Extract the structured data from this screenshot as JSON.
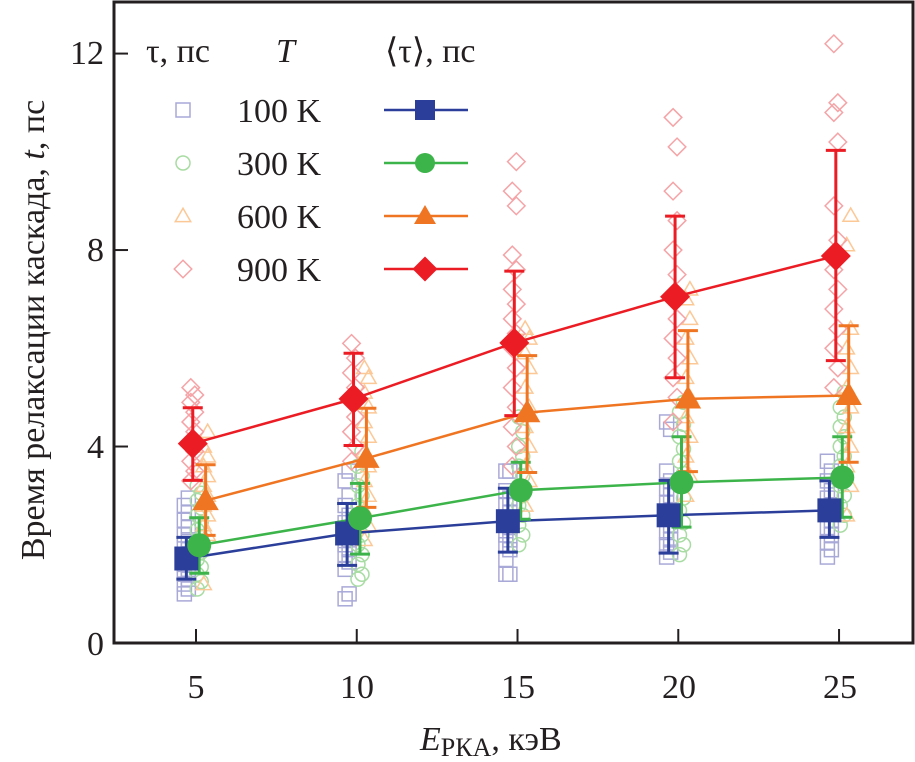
{
  "chart_data": {
    "type": "scatter",
    "title": "",
    "xlabel": "E",
    "xlabel_sub": "РКА",
    "xlabel_unit": ", кэВ",
    "ylabel": "Время релаксации каскада, ",
    "ylabel_var": "t",
    "ylabel_unit": ", пс",
    "xlim": [
      2.45,
      27.3
    ],
    "ylim": [
      0,
      13.05
    ],
    "xticks": [
      5,
      10,
      15,
      20,
      25
    ],
    "xtick_labels": [
      "5",
      "10",
      "15",
      "20",
      "25"
    ],
    "yticks": [
      0,
      4,
      8,
      12
    ],
    "ytick_labels": [
      "0",
      "4",
      "8",
      "12"
    ],
    "grid": false,
    "legend": {
      "placement": "top-left",
      "headers": {
        "individual": "τ, пс",
        "temperature": "T",
        "mean": "⟨τ⟩, пс"
      },
      "entries": [
        "100 K",
        "300 K",
        "600 K",
        "900 K"
      ]
    },
    "x": [
      5,
      10,
      15,
      20,
      25
    ],
    "series": [
      {
        "name": "100 K",
        "marker": "square",
        "color": "#2b3f9a",
        "light_color": "#a9a9d8",
        "x_offset": -0.3,
        "mean": [
          1.72,
          2.23,
          2.48,
          2.6,
          2.7
        ],
        "err_low": [
          1.3,
          1.58,
          1.85,
          1.83,
          2.15
        ],
        "err_high": [
          2.15,
          2.84,
          3.15,
          3.31,
          3.3
        ],
        "individual": [
          [
            1.0,
            1.1,
            1.2,
            1.3,
            1.4,
            1.5,
            1.6,
            1.7,
            1.8,
            1.9,
            2.0,
            2.1,
            2.2,
            2.35,
            2.5,
            2.65,
            2.8,
            2.95
          ],
          [
            0.9,
            1.0,
            1.5,
            1.65,
            1.8,
            1.9,
            2.0,
            2.1,
            2.2,
            2.3,
            2.45,
            2.6,
            2.8,
            3.0,
            3.3,
            3.5
          ],
          [
            1.4,
            1.4,
            1.7,
            1.9,
            2.0,
            2.1,
            2.2,
            2.35,
            2.5,
            2.65,
            2.8,
            2.95,
            3.1,
            3.5,
            3.5
          ],
          [
            1.75,
            1.85,
            2.0,
            2.1,
            2.25,
            2.4,
            2.55,
            2.7,
            2.85,
            3.0,
            3.15,
            3.3,
            3.5,
            4.35,
            4.5
          ],
          [
            1.75,
            1.9,
            2.05,
            2.2,
            2.35,
            2.5,
            2.65,
            2.8,
            2.95,
            3.1,
            3.3,
            3.5,
            3.7
          ]
        ]
      },
      {
        "name": "300 K",
        "marker": "circle",
        "color": "#3cb44a",
        "light_color": "#a8dca3",
        "x_offset": 0.1,
        "mean": [
          1.99,
          2.54,
          3.11,
          3.27,
          3.37
        ],
        "err_low": [
          1.42,
          1.81,
          2.52,
          2.36,
          2.56
        ],
        "err_high": [
          2.55,
          3.25,
          3.68,
          4.2,
          4.2
        ],
        "individual": [
          [
            1.1,
            1.25,
            1.4,
            1.55,
            1.7,
            1.85,
            2.0,
            2.15,
            2.3,
            2.45,
            2.6,
            2.75,
            2.9,
            3.05,
            3.2
          ],
          [
            1.3,
            1.4,
            1.6,
            1.8,
            2.0,
            2.2,
            2.4,
            2.6,
            2.8,
            3.0,
            3.2,
            3.4,
            3.6,
            3.9
          ],
          [
            2.0,
            2.2,
            2.4,
            2.6,
            2.8,
            3.0,
            3.2,
            3.4,
            3.6,
            3.8,
            4.0,
            4.3,
            4.6
          ],
          [
            1.8,
            2.0,
            2.2,
            2.45,
            2.7,
            2.95,
            3.2,
            3.45,
            3.7,
            3.95,
            4.2,
            4.45,
            4.7,
            4.9
          ],
          [
            2.4,
            2.6,
            2.8,
            3.0,
            3.2,
            3.4,
            3.6,
            3.8,
            4.0,
            4.2,
            4.4,
            4.6,
            4.8,
            5.1
          ]
        ]
      },
      {
        "name": "600 K",
        "marker": "triangle",
        "color": "#f07522",
        "light_color": "#fcc896",
        "x_offset": 0.3,
        "mean": [
          2.9,
          3.76,
          4.69,
          4.97,
          5.04
        ],
        "err_low": [
          2.19,
          2.76,
          3.47,
          3.49,
          3.68
        ],
        "err_high": [
          3.63,
          4.78,
          5.85,
          6.36,
          6.46
        ],
        "individual": [
          [
            1.2,
            2.2,
            2.4,
            2.6,
            2.8,
            3.0,
            3.2,
            3.4,
            3.6,
            3.8,
            4.0,
            4.3
          ],
          [
            2.1,
            2.4,
            2.7,
            3.0,
            3.3,
            3.6,
            3.9,
            4.2,
            4.5,
            4.8,
            5.1,
            5.4,
            5.6
          ],
          [
            2.8,
            3.3,
            3.6,
            4.0,
            4.4,
            4.8,
            5.2,
            5.6,
            5.9,
            6.2,
            6.4
          ],
          [
            3.0,
            3.4,
            3.8,
            4.2,
            4.6,
            5.0,
            5.4,
            5.8,
            6.2,
            6.6,
            7.0,
            7.2
          ],
          [
            2.6,
            3.2,
            3.6,
            4.0,
            4.4,
            4.8,
            5.2,
            5.6,
            6.0,
            6.4,
            8.1,
            8.7
          ]
        ]
      },
      {
        "name": "900 K",
        "marker": "diamond",
        "color": "#ec1c24",
        "light_color": "#f5a3a6",
        "x_offset": -0.1,
        "mean": [
          4.06,
          4.97,
          6.11,
          7.05,
          7.88
        ],
        "err_low": [
          3.31,
          4.02,
          4.63,
          5.4,
          5.75
        ],
        "err_high": [
          4.79,
          5.9,
          7.57,
          8.69,
          10.03
        ],
        "individual": [
          [
            3.3,
            3.5,
            3.7,
            3.9,
            4.1,
            4.3,
            4.5,
            4.7,
            4.9,
            5.05,
            5.2
          ],
          [
            3.7,
            4.0,
            4.3,
            4.6,
            4.9,
            5.2,
            5.5,
            5.8,
            6.1
          ],
          [
            3.6,
            4.0,
            4.4,
            4.8,
            5.2,
            5.6,
            6.0,
            6.3,
            6.6,
            6.9,
            7.2,
            7.6,
            7.9,
            8.9,
            9.2,
            9.8
          ],
          [
            4.5,
            5.0,
            5.4,
            5.8,
            6.2,
            6.6,
            7.0,
            7.5,
            8.0,
            8.6,
            9.2,
            10.1,
            10.7
          ],
          [
            5.2,
            5.6,
            6.0,
            6.4,
            6.8,
            7.2,
            7.6,
            8.2,
            8.9,
            10.2,
            10.8,
            11.0,
            12.2
          ]
        ]
      }
    ]
  }
}
